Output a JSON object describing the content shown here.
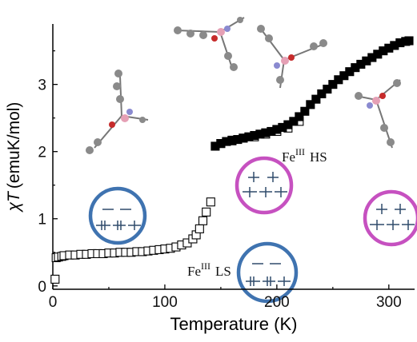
{
  "chart_data": {
    "type": "scatter",
    "xlabel": "Temperature (K)",
    "ylabel": {
      "symbol_a": "χ",
      "symbol_b": "T",
      "unit": "(emuK/mol)"
    },
    "xlim": [
      0,
      323
    ],
    "xticks": [
      0,
      100,
      200,
      300
    ],
    "xminorticks": [
      50,
      150,
      250
    ],
    "ylim": [
      -0.05,
      3.9
    ],
    "yticks": [
      0,
      1,
      2,
      3
    ],
    "yminorticks": [
      0.5,
      1.5,
      2.5,
      3.5
    ],
    "series": [
      {
        "color": "#000000",
        "marker": "open",
        "x": [
          2,
          3,
          5,
          8,
          10,
          15,
          20,
          25,
          30,
          35,
          40,
          45,
          50,
          55,
          60,
          65,
          70,
          75,
          80,
          85,
          90,
          95,
          100,
          105,
          110,
          115,
          120,
          125,
          128,
          131,
          134,
          137,
          141,
          150,
          160,
          170,
          180,
          190,
          200,
          210,
          220
        ],
        "values": [
          0.1,
          0.42,
          0.43,
          0.44,
          0.45,
          0.46,
          0.46,
          0.47,
          0.47,
          0.48,
          0.48,
          0.48,
          0.49,
          0.49,
          0.5,
          0.5,
          0.5,
          0.51,
          0.51,
          0.52,
          0.53,
          0.54,
          0.55,
          0.56,
          0.58,
          0.61,
          0.64,
          0.7,
          0.76,
          0.85,
          0.97,
          1.1,
          1.25,
          2.12,
          2.16,
          2.2,
          2.22,
          2.26,
          2.3,
          2.35,
          2.45
        ]
      },
      {
        "color": "#000000",
        "marker": "filled",
        "x": [
          145,
          150,
          155,
          160,
          165,
          170,
          175,
          180,
          185,
          190,
          195,
          200,
          205,
          210,
          215,
          220,
          225,
          230,
          235,
          240,
          245,
          250,
          255,
          260,
          265,
          270,
          275,
          280,
          285,
          290,
          295,
          300,
          305,
          310,
          315,
          318
        ],
        "values": [
          2.08,
          2.12,
          2.15,
          2.17,
          2.18,
          2.2,
          2.22,
          2.24,
          2.26,
          2.28,
          2.3,
          2.33,
          2.36,
          2.4,
          2.45,
          2.52,
          2.6,
          2.7,
          2.78,
          2.86,
          2.93,
          3.0,
          3.07,
          3.13,
          3.19,
          3.25,
          3.3,
          3.35,
          3.4,
          3.45,
          3.5,
          3.54,
          3.58,
          3.62,
          3.64,
          3.65
        ]
      }
    ],
    "annotations": [
      {
        "base": "Fe",
        "sup": "III",
        "state": "LS"
      },
      {
        "base": "Fe",
        "sup": "III",
        "state": "HS"
      }
    ]
  }
}
